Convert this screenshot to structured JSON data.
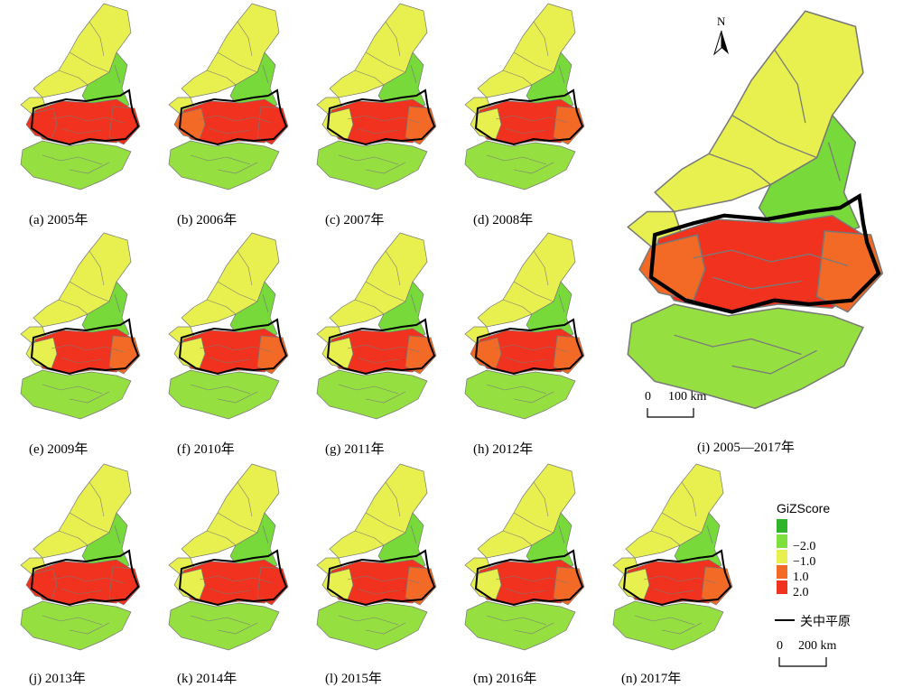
{
  "figure": {
    "small_panels": [
      {
        "caption": "(a) 2005年",
        "fills": {
          "north": "#e7f04e",
          "east": "#77d93a",
          "corridor": "#f0321e",
          "west_end": "#f0321e",
          "east_end": "#f0321e",
          "south": "#96df41"
        }
      },
      {
        "caption": "(b) 2006年",
        "fills": {
          "north": "#e7f04e",
          "east": "#77d93a",
          "corridor": "#f0321e",
          "west_end": "#f26a26",
          "east_end": "#f0321e",
          "south": "#96df41"
        }
      },
      {
        "caption": "(c) 2007年",
        "fills": {
          "north": "#e7f04e",
          "east": "#77d93a",
          "corridor": "#f0321e",
          "west_end": "#e7f04e",
          "east_end": "#f26a26",
          "south": "#96df41"
        }
      },
      {
        "caption": "(d) 2008年",
        "fills": {
          "north": "#e7f04e",
          "east": "#77d93a",
          "corridor": "#f0321e",
          "west_end": "#e7f04e",
          "east_end": "#f26a26",
          "south": "#96df41"
        }
      },
      {
        "caption": "(e) 2009年",
        "fills": {
          "north": "#e7f04e",
          "east": "#77d93a",
          "corridor": "#f0321e",
          "west_end": "#e7f04e",
          "east_end": "#f26a26",
          "south": "#96df41"
        }
      },
      {
        "caption": "(f) 2010年",
        "fills": {
          "north": "#e7f04e",
          "east": "#77d93a",
          "corridor": "#f0321e",
          "west_end": "#e7f04e",
          "east_end": "#f26a26",
          "south": "#96df41"
        }
      },
      {
        "caption": "(g) 2011年",
        "fills": {
          "north": "#e7f04e",
          "east": "#77d93a",
          "corridor": "#f0321e",
          "west_end": "#e7f04e",
          "east_end": "#f26a26",
          "south": "#96df41"
        }
      },
      {
        "caption": "(h) 2012年",
        "fills": {
          "north": "#e7f04e",
          "east": "#77d93a",
          "corridor": "#f0321e",
          "west_end": "#f26a26",
          "east_end": "#f26a26",
          "south": "#96df41"
        }
      },
      {
        "caption": "(j) 2013年",
        "fills": {
          "north": "#e7f04e",
          "east": "#77d93a",
          "corridor": "#f0321e",
          "west_end": "#f0321e",
          "east_end": "#f0321e",
          "south": "#96df41"
        }
      },
      {
        "caption": "(k) 2014年",
        "fills": {
          "north": "#e7f04e",
          "east": "#77d93a",
          "corridor": "#f0321e",
          "west_end": "#e7f04e",
          "east_end": "#f0321e",
          "south": "#96df41"
        }
      },
      {
        "caption": "(l) 2015年",
        "fills": {
          "north": "#e7f04e",
          "east": "#77d93a",
          "corridor": "#f0321e",
          "west_end": "#e7f04e",
          "east_end": "#f26a26",
          "south": "#96df41"
        }
      },
      {
        "caption": "(m) 2016年",
        "fills": {
          "north": "#e7f04e",
          "east": "#77d93a",
          "corridor": "#f0321e",
          "west_end": "#e7f04e",
          "east_end": "#f26a26",
          "south": "#96df41"
        }
      },
      {
        "caption": "(n) 2017年",
        "fills": {
          "north": "#e7f04e",
          "east": "#77d93a",
          "corridor": "#f0321e",
          "west_end": "#e7f04e",
          "east_end": "#f26a26",
          "south": "#96df41"
        }
      }
    ],
    "large_panel": {
      "caption": "(i) 2005—2017年",
      "fills": {
        "north": "#e7f04e",
        "east": "#77d93a",
        "corridor": "#f0321e",
        "west_end": "#f26a26",
        "east_end": "#f26a26",
        "south": "#96df41"
      },
      "scale_bar": {
        "label_zero": "0",
        "label_dist": "100 km"
      },
      "north_arrow": "N"
    },
    "legend": {
      "title": "GiZScore",
      "classes": [
        {
          "color": "#2fb52a"
        },
        {
          "color": "#7ee03c",
          "label": "−2.0"
        },
        {
          "color": "#e7f04e",
          "label": "−1.0"
        },
        {
          "color": "#f26a26",
          "label": "1.0"
        },
        {
          "color": "#f0321e",
          "label": "2.0"
        }
      ],
      "boundary_label": "关中平原",
      "scale_bar": {
        "label_zero": "0",
        "label_dist": "200 km"
      }
    },
    "colors": {
      "boundary": "#000000",
      "county_lines": "#7a7a7a"
    }
  }
}
